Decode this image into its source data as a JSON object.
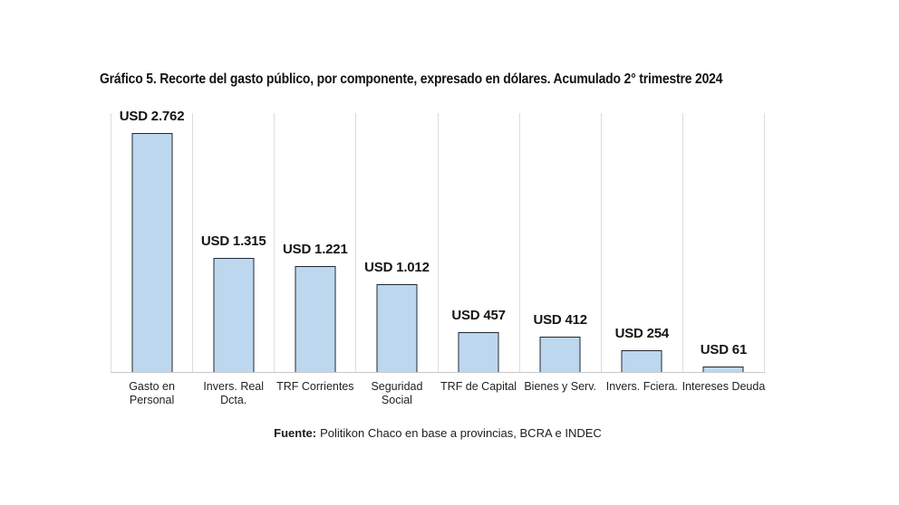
{
  "title": "Gráfico 5. Recorte del gasto público, por componente, expresado en dólares. Acumulado 2° trimestre 2024",
  "source": {
    "label": "Fuente:",
    "text": "Politikon Chaco en base a provincias, BCRA e INDEC"
  },
  "chart_data": {
    "type": "bar",
    "title": "Gráfico 5. Recorte del gasto público, por componente, expresado en dólares. Acumulado 2° trimestre 2024",
    "categories": [
      "Gasto en Personal",
      "Invers. Real Dcta.",
      "TRF Corrientes",
      "Seguridad Social",
      "TRF de Capital",
      "Bienes y Serv.",
      "Invers. Fciera.",
      "Intereses Deuda"
    ],
    "category_labels": [
      "Gasto en\nPersonal",
      "Invers. Real\nDcta.",
      "TRF Corrientes",
      "Seguridad\nSocial",
      "TRF de Capital",
      "Bienes y Serv.",
      "Invers. Fciera.",
      "Intereses Deuda"
    ],
    "values": [
      2762,
      1315,
      1221,
      1012,
      457,
      412,
      254,
      61
    ],
    "value_labels": [
      "USD 2.762",
      "USD 1.315",
      "USD 1.221",
      "USD 1.012",
      "USD 457",
      "USD 412",
      "USD 254",
      "USD 61"
    ],
    "unit": "USD",
    "xlabel": "",
    "ylabel": "",
    "ylim": [
      0,
      3000
    ],
    "grid": "vertical category separators only",
    "legend": "none",
    "colors": {
      "bar_fill": "#bdd7ee",
      "bar_border": "#1f2733",
      "gridline": "#dcdcdc",
      "axis_line": "#c9c9c9",
      "text": "#1a1a1a"
    }
  }
}
